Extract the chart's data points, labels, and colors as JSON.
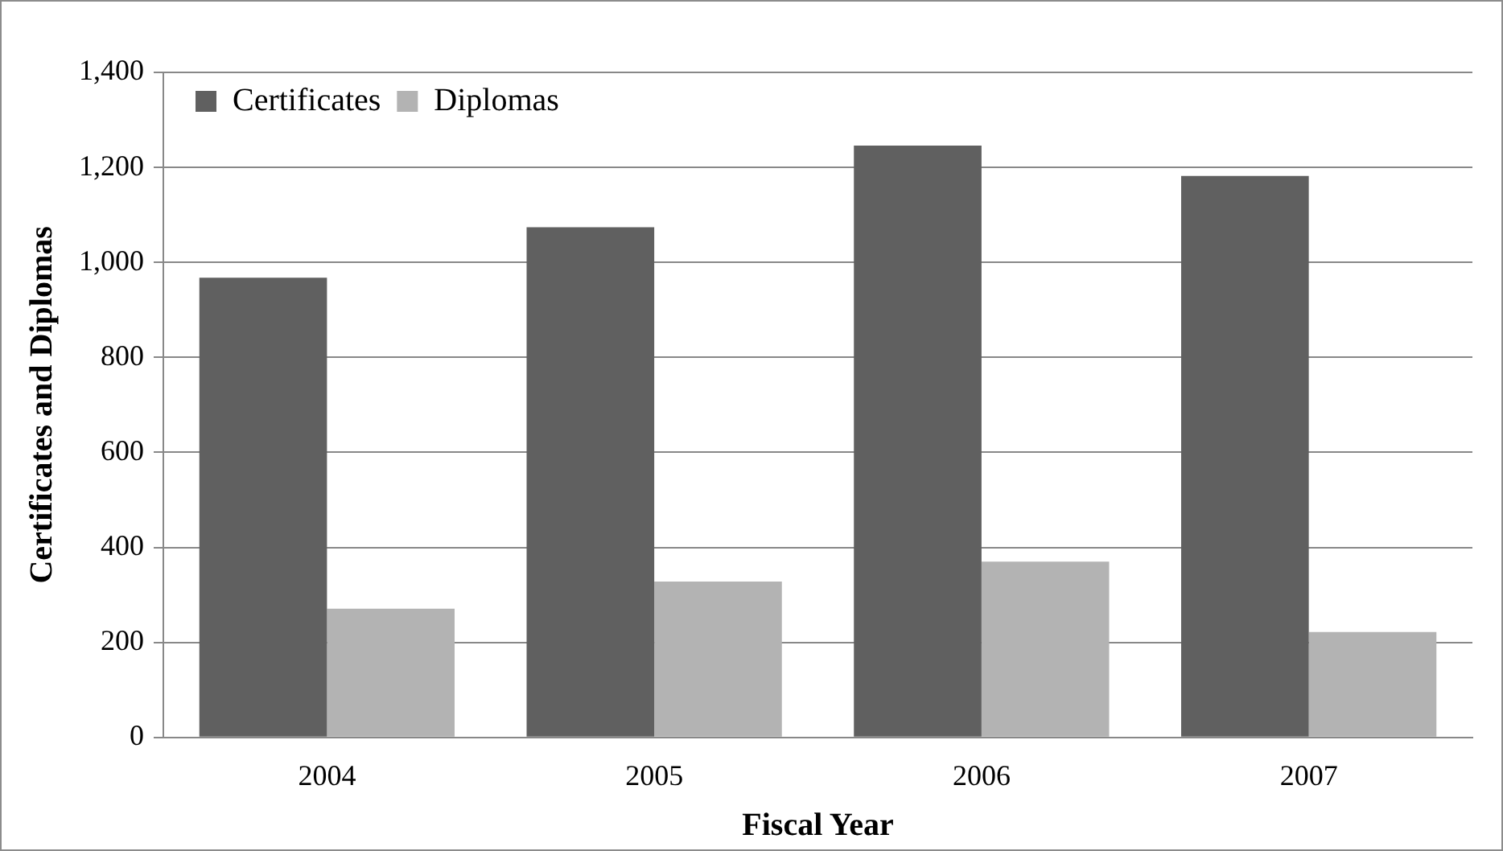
{
  "chart_data": {
    "type": "bar",
    "xlabel": "Fiscal Year",
    "ylabel": "Certificates and Diplomas",
    "categories": [
      "2004",
      "2005",
      "2006",
      "2007"
    ],
    "series": [
      {
        "name": "Certificates",
        "color": "#606060",
        "values": [
          968,
          1074,
          1246,
          1182
        ]
      },
      {
        "name": "Diplomas",
        "color": "#b3b3b3",
        "values": [
          271,
          328,
          370,
          222
        ]
      }
    ],
    "ylim": [
      0,
      1400
    ],
    "yticks": [
      0,
      200,
      400,
      600,
      800,
      {
        "value": 1000,
        "label": "1,000"
      },
      {
        "value": 1200,
        "label": "1,200"
      },
      {
        "value": 1400,
        "label": "1,400"
      }
    ],
    "grid": "y",
    "legend": "top left"
  }
}
